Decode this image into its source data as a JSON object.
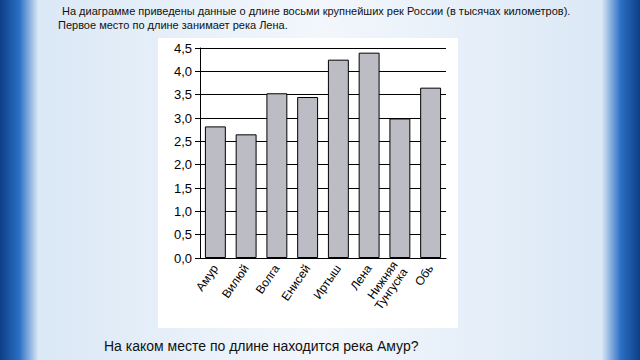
{
  "intro": "На диаграмме приведены данные о длине восьми крупнейших рек России (в тысячах километров). Первое место по длине занимает река Лена.",
  "chart_data": {
    "type": "bar",
    "categories": [
      "Амур",
      "Вилюй",
      "Волга",
      "Енисей",
      "Иртыш",
      "Лена",
      "Нижняя\nТунгуска",
      "Обь"
    ],
    "values": [
      2.82,
      2.65,
      3.53,
      3.45,
      4.25,
      4.4,
      2.99,
      3.65
    ],
    "color": "#bcbcc4",
    "ylim": [
      0,
      4.5
    ],
    "yticks": [
      {
        "value": 0,
        "label": "0,0"
      },
      {
        "value": 0.5,
        "label": "0,5"
      },
      {
        "value": 1,
        "label": "1,0"
      },
      {
        "value": 1.5,
        "label": "1,5"
      },
      {
        "value": 2,
        "label": "2,0"
      },
      {
        "value": 2.5,
        "label": "2,5"
      },
      {
        "value": 3,
        "label": "3,0"
      },
      {
        "value": 3.5,
        "label": "3,5"
      },
      {
        "value": 4,
        "label": "4,0"
      },
      {
        "value": 4.5,
        "label": "4,5"
      }
    ],
    "grid": true
  },
  "question": "На каком месте по длине находится река Амур?"
}
